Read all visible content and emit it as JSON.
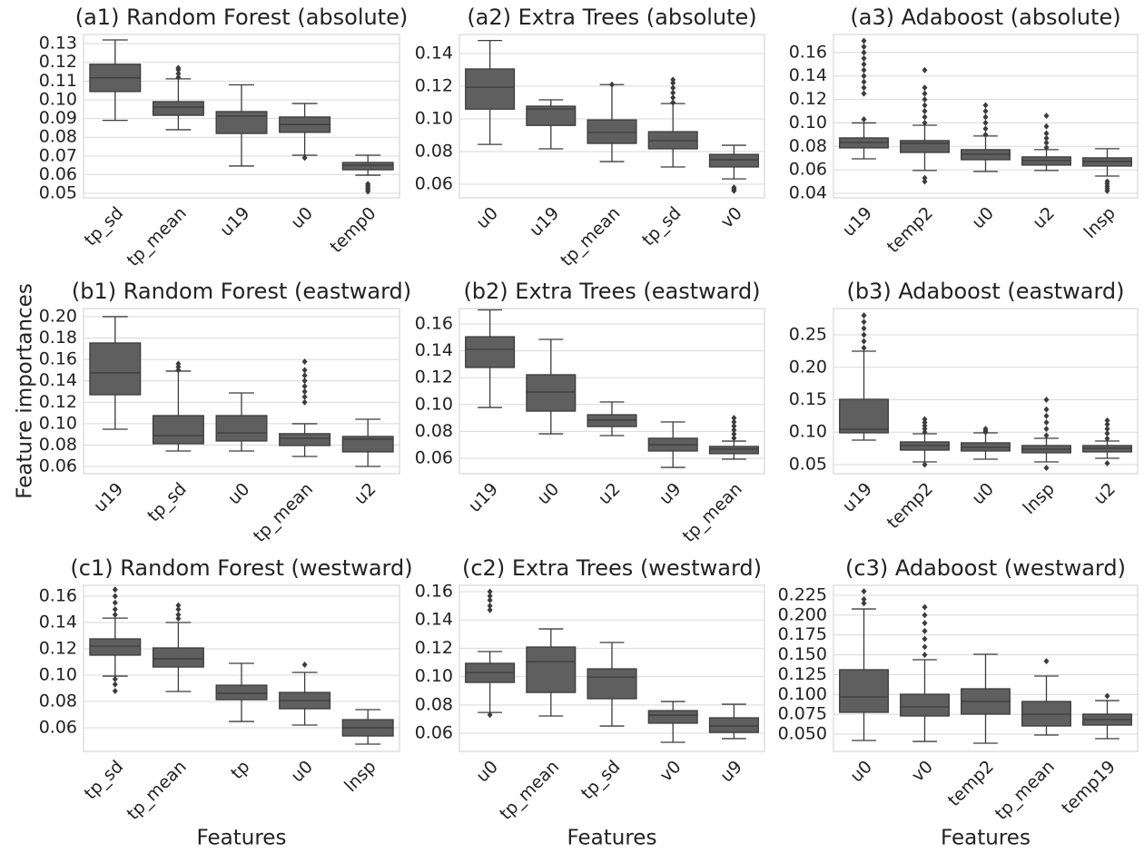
{
  "chart_data": [
    {
      "type": "box",
      "title": "(a1) Random Forest (absolute)",
      "color": "#5f5f5f",
      "grid": true,
      "categories": [
        "tp_sd",
        "tp_mean",
        "u19",
        "u0",
        "temp0"
      ],
      "ylim": [
        0.0476,
        0.1349
      ],
      "yticks": [
        0.05,
        0.06,
        0.07,
        0.08,
        0.09,
        {
          "value": 0.1,
          "label": "0.10"
        },
        0.11,
        0.12,
        0.13
      ],
      "boxes": [
        {
          "whislo": 0.089,
          "q1": 0.1044,
          "med": 0.1117,
          "q3": 0.119,
          "whishi": 0.132
        },
        {
          "whislo": 0.084,
          "q1": 0.0917,
          "med": 0.0961,
          "q3": 0.099,
          "whishi": 0.1112,
          "fliers": [
            0.112,
            0.114,
            0.116,
            0.117
          ]
        },
        {
          "whislo": 0.0646,
          "q1": 0.082,
          "med": 0.0913,
          "q3": 0.0937,
          "whishi": 0.108
        },
        {
          "whislo": 0.0704,
          "q1": 0.0826,
          "med": 0.0868,
          "q3": 0.0908,
          "whishi": 0.098,
          "fliers": [
            0.069
          ]
        },
        {
          "whislo": 0.0597,
          "q1": 0.0626,
          "med": 0.065,
          "q3": 0.0665,
          "whishi": 0.0704,
          "fliers": [
            0.051,
            0.052,
            0.053,
            0.054,
            0.055
          ]
        }
      ]
    },
    {
      "type": "box",
      "title": "(a2) Extra Trees (absolute)",
      "color": "#5f5f5f",
      "grid": true,
      "categories": [
        "u0",
        "u19",
        "tp_mean",
        "tp_sd",
        "v0"
      ],
      "ylim": [
        0.0517,
        0.1517
      ],
      "yticks": [
        0.06,
        0.08,
        {
          "value": 0.1,
          "label": "0.10"
        },
        0.12,
        0.14
      ],
      "boxes": [
        {
          "whislo": 0.0844,
          "q1": 0.106,
          "med": 0.1194,
          "q3": 0.1306,
          "whishi": 0.148
        },
        {
          "whislo": 0.0817,
          "q1": 0.096,
          "med": 0.106,
          "q3": 0.1078,
          "whishi": 0.1117
        },
        {
          "whislo": 0.0739,
          "q1": 0.085,
          "med": 0.0917,
          "q3": 0.0994,
          "whishi": 0.121,
          "fliers": [
            0.121
          ]
        },
        {
          "whislo": 0.0706,
          "q1": 0.0817,
          "med": 0.0867,
          "q3": 0.0922,
          "whishi": 0.1094,
          "fliers": [
            0.11,
            0.113,
            0.116,
            0.119,
            0.122,
            0.124
          ]
        },
        {
          "whislo": 0.0633,
          "q1": 0.0706,
          "med": 0.075,
          "q3": 0.0783,
          "whishi": 0.0839,
          "fliers": [
            0.056,
            0.057,
            0.058
          ]
        }
      ]
    },
    {
      "type": "box",
      "title": "(a3) Adaboost (absolute)",
      "color": "#5f5f5f",
      "grid": true,
      "categories": [
        "u19",
        "temp2",
        "u0",
        "u2",
        "lnsp"
      ],
      "ylim": [
        0.0361,
        0.1754
      ],
      "yticks": [
        0.04,
        0.06,
        0.08,
        {
          "value": 0.1,
          "label": "0.10"
        },
        0.12,
        0.14,
        0.16
      ],
      "boxes": [
        {
          "whislo": 0.0694,
          "q1": 0.0787,
          "med": 0.0833,
          "q3": 0.0872,
          "whishi": 0.1,
          "fliers": [
            0.103,
            0.125,
            0.13,
            0.135,
            0.14,
            0.145,
            0.15,
            0.155,
            0.16,
            0.165,
            0.17
          ]
        },
        {
          "whislo": 0.0594,
          "q1": 0.0748,
          "med": 0.0826,
          "q3": 0.0849,
          "whishi": 0.098,
          "fliers": [
            0.05,
            0.053,
            0.1,
            0.105,
            0.11,
            0.115,
            0.12,
            0.125,
            0.13,
            0.145
          ]
        },
        {
          "whislo": 0.0586,
          "q1": 0.0686,
          "med": 0.0733,
          "q3": 0.0772,
          "whishi": 0.0888,
          "fliers": [
            0.09,
            0.095,
            0.1,
            0.105,
            0.11,
            0.115
          ]
        },
        {
          "whislo": 0.0594,
          "q1": 0.064,
          "med": 0.0679,
          "q3": 0.071,
          "whishi": 0.0772,
          "fliers": [
            0.079,
            0.083,
            0.087,
            0.091,
            0.097,
            0.106
          ]
        },
        {
          "whislo": 0.0547,
          "q1": 0.0632,
          "med": 0.0671,
          "q3": 0.0702,
          "whishi": 0.078,
          "fliers": [
            0.042,
            0.044,
            0.046,
            0.048,
            0.05
          ]
        }
      ]
    },
    {
      "type": "box",
      "title": "(b1) Random Forest (eastward)",
      "color": "#5f5f5f",
      "grid": true,
      "ylabel": "Feature importances",
      "categories": [
        "u19",
        "tp_sd",
        "u0",
        "tp_mean",
        "u2"
      ],
      "ylim": [
        0.0532,
        0.2076
      ],
      "yticks": [
        0.06,
        0.08,
        {
          "value": 0.1,
          "label": "0.10"
        },
        0.12,
        0.14,
        0.16,
        0.18,
        {
          "value": 0.2,
          "label": "0.20"
        }
      ],
      "boxes": [
        {
          "whislo": 0.0948,
          "q1": 0.127,
          "med": 0.1474,
          "q3": 0.1754,
          "whishi": 0.2
        },
        {
          "whislo": 0.0744,
          "q1": 0.0812,
          "med": 0.0888,
          "q3": 0.1075,
          "whishi": 0.1491,
          "fliers": [
            0.15,
            0.153,
            0.156
          ]
        },
        {
          "whislo": 0.0744,
          "q1": 0.0838,
          "med": 0.0914,
          "q3": 0.1075,
          "whishi": 0.1287
        },
        {
          "whislo": 0.0693,
          "q1": 0.0795,
          "med": 0.0863,
          "q3": 0.0906,
          "whishi": 0.0999,
          "fliers": [
            0.12,
            0.125,
            0.13,
            0.135,
            0.14,
            0.145,
            0.15,
            0.158
          ]
        },
        {
          "whislo": 0.06,
          "q1": 0.0736,
          "med": 0.0855,
          "q3": 0.088,
          "whishi": 0.1041
        }
      ]
    },
    {
      "type": "box",
      "title": "(b2) Extra Trees (eastward)",
      "color": "#5f5f5f",
      "grid": true,
      "categories": [
        "u19",
        "u0",
        "u2",
        "u9",
        "tp_mean"
      ],
      "ylim": [
        0.0485,
        0.1715
      ],
      "yticks": [
        0.06,
        0.08,
        {
          "value": 0.1,
          "label": "0.10"
        },
        0.12,
        0.14,
        0.16
      ],
      "boxes": [
        {
          "whislo": 0.0978,
          "q1": 0.1276,
          "med": 0.1411,
          "q3": 0.1505,
          "whishi": 0.1705
        },
        {
          "whislo": 0.0782,
          "q1": 0.0951,
          "med": 0.1093,
          "q3": 0.1222,
          "whishi": 0.1485
        },
        {
          "whislo": 0.0769,
          "q1": 0.0836,
          "med": 0.0884,
          "q3": 0.0924,
          "whishi": 0.1019
        },
        {
          "whislo": 0.0532,
          "q1": 0.0654,
          "med": 0.0701,
          "q3": 0.0749,
          "whishi": 0.087
        },
        {
          "whislo": 0.0593,
          "q1": 0.0634,
          "med": 0.0668,
          "q3": 0.0688,
          "whishi": 0.0728,
          "fliers": [
            0.075,
            0.078,
            0.081,
            0.084,
            0.087,
            0.09
          ]
        }
      ]
    },
    {
      "type": "box",
      "title": "(b3) Adaboost (eastward)",
      "color": "#5f5f5f",
      "grid": true,
      "categories": [
        "u19",
        "temp2",
        "u0",
        "lnsp",
        "u2"
      ],
      "ylim": [
        0.036,
        0.2906
      ],
      "yticks": [
        0.05,
        {
          "value": 0.1,
          "label": "0.10"
        },
        0.15,
        {
          "value": 0.2,
          "label": "0.20"
        },
        0.25
      ],
      "boxes": [
        {
          "whislo": 0.0878,
          "q1": 0.099,
          "med": 0.1045,
          "q3": 0.1507,
          "whishi": 0.2248,
          "fliers": [
            0.23,
            0.24,
            0.25,
            0.26,
            0.27,
            0.28
          ]
        },
        {
          "whislo": 0.0542,
          "q1": 0.0724,
          "med": 0.0794,
          "q3": 0.085,
          "whishi": 0.0976,
          "fliers": [
            0.05,
            0.1,
            0.105,
            0.11,
            0.115,
            0.12
          ]
        },
        {
          "whislo": 0.0584,
          "q1": 0.071,
          "med": 0.0766,
          "q3": 0.0836,
          "whishi": 0.099,
          "fliers": [
            0.1,
            0.102,
            0.105
          ]
        },
        {
          "whislo": 0.0542,
          "q1": 0.0682,
          "med": 0.0738,
          "q3": 0.0794,
          "whishi": 0.0906,
          "fliers": [
            0.045,
            0.095,
            0.105,
            0.115,
            0.125,
            0.135,
            0.15
          ]
        },
        {
          "whislo": 0.0598,
          "q1": 0.0696,
          "med": 0.0752,
          "q3": 0.0794,
          "whishi": 0.0864,
          "fliers": [
            0.052,
            0.09,
            0.098,
            0.105,
            0.112,
            0.118
          ]
        }
      ]
    },
    {
      "type": "box",
      "title": "(c1) Random Forest (westward)",
      "color": "#5f5f5f",
      "grid": true,
      "xlabel": "Features",
      "categories": [
        "tp_sd",
        "tp_mean",
        "tp",
        "u0",
        "lnsp"
      ],
      "ylim": [
        0.0421,
        0.1683
      ],
      "yticks": [
        0.06,
        0.08,
        {
          "value": 0.1,
          "label": "0.10"
        },
        0.12,
        0.14,
        0.16
      ],
      "boxes": [
        {
          "whislo": 0.0993,
          "q1": 0.1152,
          "med": 0.1221,
          "q3": 0.1276,
          "whishi": 0.1434,
          "fliers": [
            0.088,
            0.093,
            0.097,
            0.146,
            0.15,
            0.155,
            0.16,
            0.165
          ]
        },
        {
          "whislo": 0.0876,
          "q1": 0.1062,
          "med": 0.1124,
          "q3": 0.1207,
          "whishi": 0.14,
          "fliers": [
            0.143,
            0.146,
            0.15,
            0.153
          ]
        },
        {
          "whislo": 0.0648,
          "q1": 0.0814,
          "med": 0.0862,
          "q3": 0.0924,
          "whishi": 0.109
        },
        {
          "whislo": 0.0621,
          "q1": 0.0745,
          "med": 0.0807,
          "q3": 0.0869,
          "whishi": 0.1021,
          "fliers": [
            0.108
          ]
        },
        {
          "whislo": 0.0476,
          "q1": 0.0538,
          "med": 0.06,
          "q3": 0.0662,
          "whishi": 0.0738
        }
      ]
    },
    {
      "type": "box",
      "title": "(c2) Extra Trees (westward)",
      "color": "#5f5f5f",
      "grid": true,
      "xlabel": "Features",
      "categories": [
        "u0",
        "tp_mean",
        "tp_sd",
        "v0",
        "u9"
      ],
      "ylim": [
        0.0472,
        0.1645
      ],
      "yticks": [
        0.06,
        0.08,
        {
          "value": 0.1,
          "label": "0.10"
        },
        0.12,
        0.14,
        0.16
      ],
      "boxes": [
        {
          "whislo": 0.0747,
          "q1": 0.0959,
          "med": 0.1029,
          "q3": 0.1094,
          "whishi": 0.1177,
          "fliers": [
            0.073,
            0.147,
            0.15,
            0.154,
            0.157,
            0.16
          ]
        },
        {
          "whislo": 0.0722,
          "q1": 0.0888,
          "med": 0.1106,
          "q3": 0.1209,
          "whishi": 0.1337
        },
        {
          "whislo": 0.0651,
          "q1": 0.0844,
          "med": 0.0997,
          "q3": 0.1055,
          "whishi": 0.1241
        },
        {
          "whislo": 0.0536,
          "q1": 0.0671,
          "med": 0.0728,
          "q3": 0.076,
          "whishi": 0.0824
        },
        {
          "whislo": 0.0562,
          "q1": 0.0606,
          "med": 0.0651,
          "q3": 0.0709,
          "whishi": 0.0805
        }
      ]
    },
    {
      "type": "box",
      "title": "(c3) Adaboost (westward)",
      "color": "#5f5f5f",
      "grid": true,
      "xlabel": "Features",
      "categories": [
        "u0",
        "v0",
        "temp2",
        "tp_mean",
        "temp19"
      ],
      "ylim": [
        0.0283,
        0.2376
      ],
      "yticks": [
        {
          "value": 0.05,
          "label": "0.050"
        },
        0.075,
        {
          "value": 0.1,
          "label": "0.100"
        },
        0.125,
        {
          "value": 0.15,
          "label": "0.150"
        },
        0.175,
        {
          "value": 0.2,
          "label": "0.200"
        },
        0.225
      ],
      "boxes": [
        {
          "whislo": 0.042,
          "q1": 0.0775,
          "med": 0.0969,
          "q3": 0.1312,
          "whishi": 0.2078,
          "fliers": [
            0.215,
            0.22,
            0.23
          ]
        },
        {
          "whislo": 0.0408,
          "q1": 0.0729,
          "med": 0.0843,
          "q3": 0.1003,
          "whishi": 0.1438,
          "fliers": [
            0.15,
            0.16,
            0.17,
            0.18,
            0.19,
            0.2,
            0.21
          ]
        },
        {
          "whislo": 0.0386,
          "q1": 0.0752,
          "med": 0.0912,
          "q3": 0.1072,
          "whishi": 0.1507
        },
        {
          "whislo": 0.0489,
          "q1": 0.0603,
          "med": 0.0752,
          "q3": 0.0912,
          "whishi": 0.1232,
          "fliers": [
            0.142
          ]
        },
        {
          "whislo": 0.0443,
          "q1": 0.0614,
          "med": 0.0683,
          "q3": 0.0752,
          "whishi": 0.0923,
          "fliers": [
            0.098
          ]
        }
      ]
    }
  ]
}
